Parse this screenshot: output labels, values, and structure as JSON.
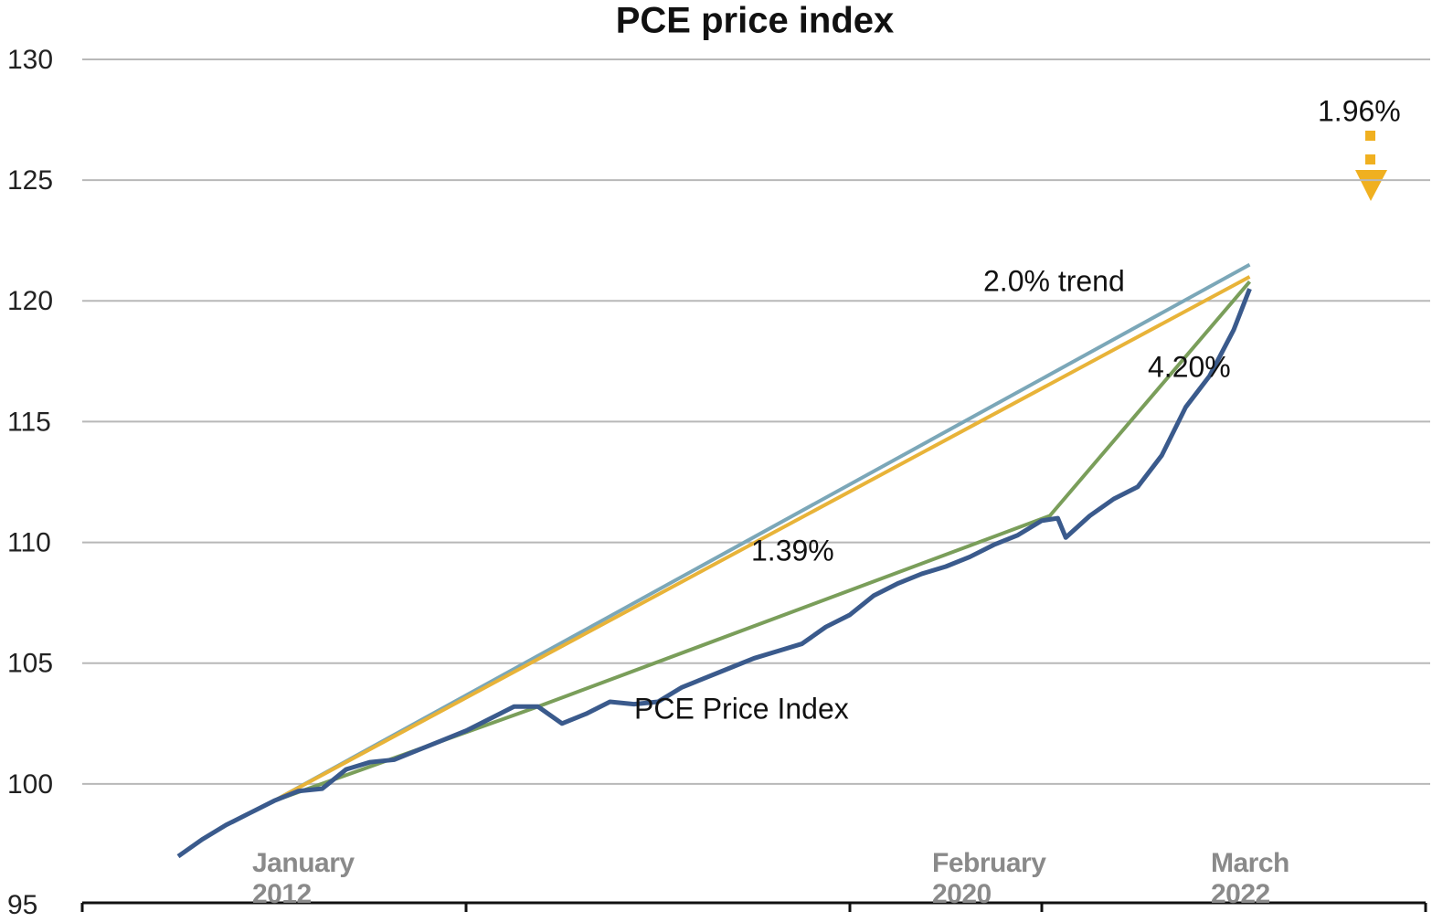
{
  "chart_data": {
    "type": "line",
    "title": "PCE price index",
    "xlim": [
      "2010-01",
      "2024-01"
    ],
    "xticks": [
      "2010-01",
      "2014-01",
      "2018-01",
      "2020-01",
      "2024-01"
    ],
    "ylim": [
      95,
      130
    ],
    "yticks": [
      95,
      100,
      105,
      110,
      115,
      120,
      125,
      130
    ],
    "grid": true,
    "x_labels": [
      "January 2012",
      "February 2020",
      "March 2022"
    ],
    "annotations": [
      "4.20%"
    ],
    "series": [
      {
        "name": "2.0% trend",
        "color": "#7ba7b8",
        "x": [
          "2012-01",
          "2022-03"
        ],
        "values": [
          99.3,
          121.5
        ]
      },
      {
        "name": "1.96%",
        "color": "#e8b338",
        "x": [
          "2012-01",
          "2022-03"
        ],
        "values": [
          99.3,
          121.0
        ]
      },
      {
        "name": "1.39%",
        "color": "#7a9e5a",
        "x": [
          "2012-01",
          "2014-10",
          "2020-02",
          "2022-03"
        ],
        "values": [
          99.3,
          103.2,
          111.1,
          120.8
        ]
      },
      {
        "name": "PCE Price Index",
        "color": "#3a5a8c",
        "x": [
          "2011-01",
          "2011-04",
          "2011-07",
          "2011-10",
          "2012-01",
          "2012-04",
          "2012-07",
          "2012-10",
          "2013-01",
          "2013-04",
          "2013-07",
          "2013-10",
          "2014-01",
          "2014-04",
          "2014-07",
          "2014-10",
          "2015-01",
          "2015-04",
          "2015-07",
          "2015-10",
          "2016-01",
          "2016-04",
          "2016-07",
          "2016-10",
          "2017-01",
          "2017-04",
          "2017-07",
          "2017-10",
          "2018-01",
          "2018-04",
          "2018-07",
          "2018-10",
          "2019-01",
          "2019-04",
          "2019-07",
          "2019-10",
          "2020-01",
          "2020-03",
          "2020-04",
          "2020-07",
          "2020-10",
          "2021-01",
          "2021-04",
          "2021-07",
          "2021-10",
          "2022-01",
          "2022-03"
        ],
        "values": [
          97.0,
          97.7,
          98.3,
          98.8,
          99.3,
          99.7,
          99.8,
          100.6,
          100.9,
          101.0,
          101.4,
          101.8,
          102.2,
          102.7,
          103.2,
          103.2,
          102.5,
          102.9,
          103.4,
          103.3,
          103.4,
          104.0,
          104.4,
          104.8,
          105.2,
          105.5,
          105.8,
          106.5,
          107.0,
          107.8,
          108.3,
          108.7,
          109.0,
          109.4,
          109.9,
          110.3,
          110.9,
          111.0,
          110.2,
          111.1,
          111.8,
          112.3,
          113.6,
          115.6,
          116.9,
          118.8,
          120.5
        ]
      }
    ]
  }
}
